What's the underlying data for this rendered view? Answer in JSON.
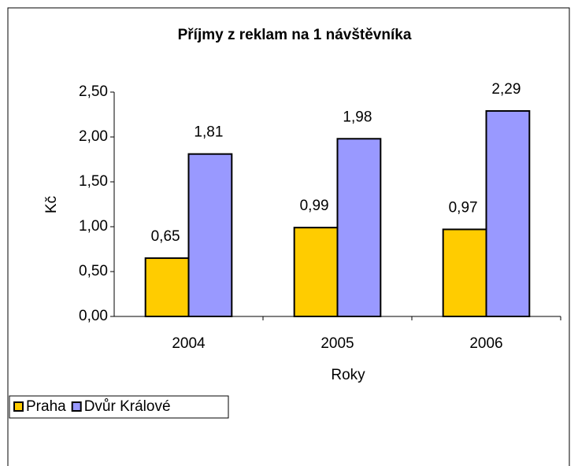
{
  "chart_data": {
    "type": "bar",
    "title": "Příjmy z reklam na 1 návštěvníka",
    "xlabel": "Roky",
    "ylabel": "Kč",
    "categories": [
      "2004",
      "2005",
      "2006"
    ],
    "series": [
      {
        "name": "Praha",
        "color": "#ffcc00",
        "values": [
          0.65,
          0.99,
          0.97
        ],
        "value_labels": [
          "0,65",
          "0,99",
          "0,97"
        ]
      },
      {
        "name": "Dvůr Králové",
        "color": "#9999ff",
        "values": [
          1.81,
          1.98,
          2.29
        ],
        "value_labels": [
          "1,81",
          "1,98",
          "2,29"
        ]
      }
    ],
    "ylim": [
      0,
      2.5
    ],
    "yticks": [
      {
        "value": 0,
        "label": "0,00"
      },
      {
        "value": 0.5,
        "label": "0,50"
      },
      {
        "value": 1,
        "label": "1,00"
      },
      {
        "value": 1.5,
        "label": "1,50"
      },
      {
        "value": 2,
        "label": "2,00"
      },
      {
        "value": 2.5,
        "label": "2,50"
      }
    ],
    "grid": false,
    "legend": "bottom-left"
  }
}
